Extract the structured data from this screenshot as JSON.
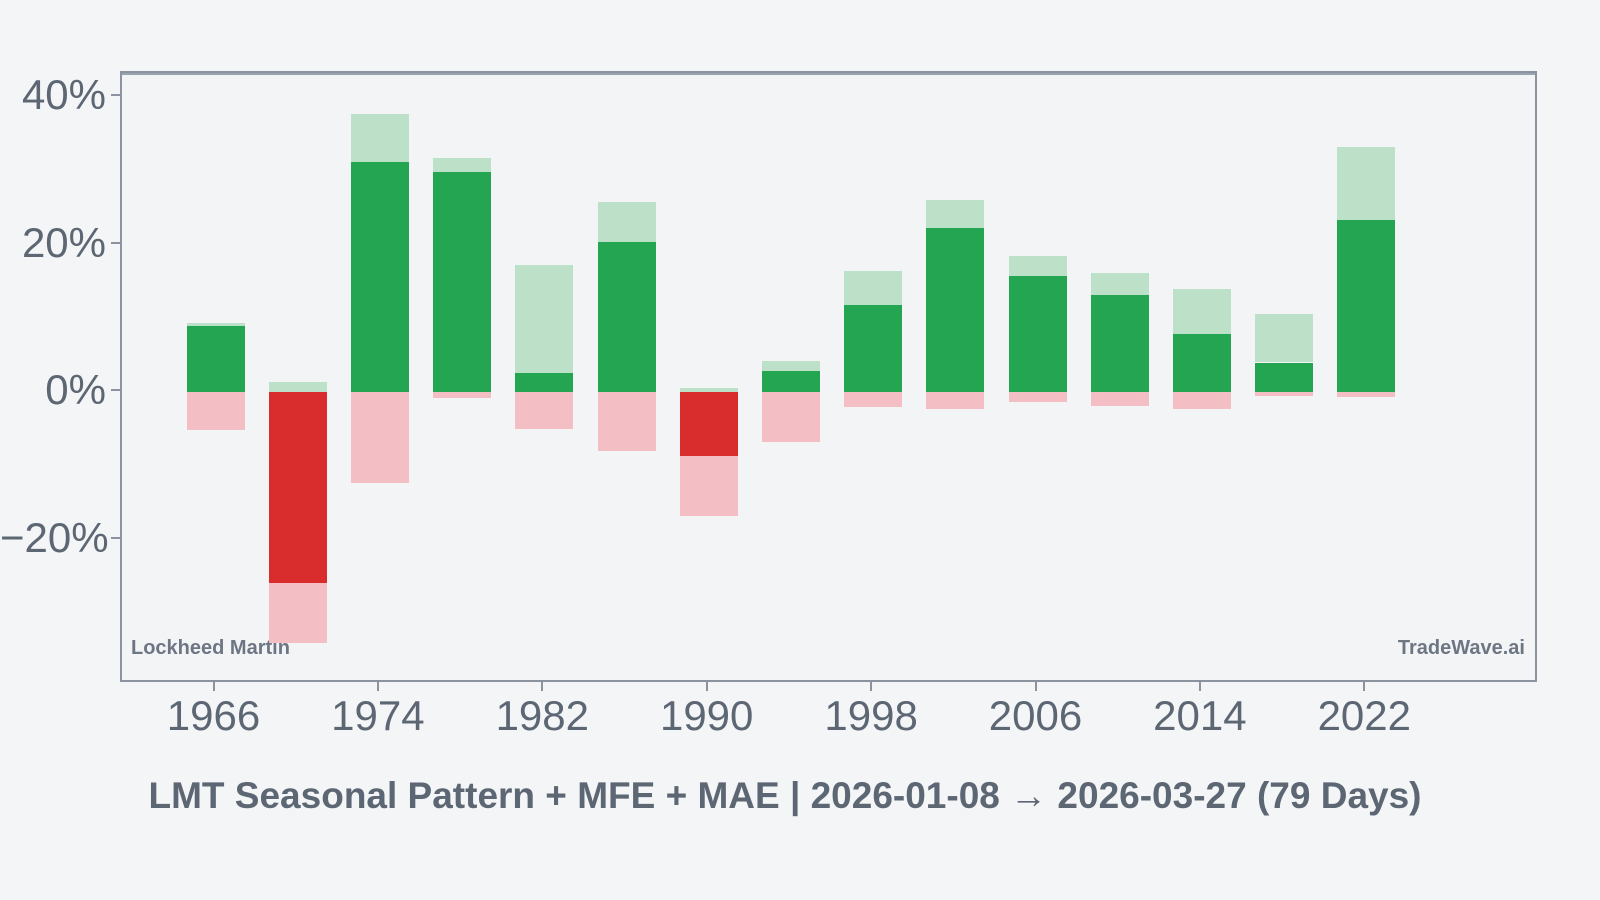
{
  "chart_data": {
    "type": "bar",
    "title": "LMT Seasonal Pattern + MFE + MAE | 2026-01-08 → 2026-03-27 (79 Days)",
    "categories": [
      1966,
      1970,
      1974,
      1978,
      1982,
      1986,
      1990,
      1994,
      1998,
      2002,
      2006,
      2010,
      2014,
      2018,
      2022
    ],
    "series": [
      {
        "name": "pattern_return_pct",
        "values": [
          9.0,
          -25.9,
          31.2,
          29.8,
          2.6,
          20.3,
          -8.7,
          2.9,
          11.8,
          22.2,
          15.7,
          13.2,
          7.8,
          4.0,
          23.3
        ]
      },
      {
        "name": "mfe_pct",
        "values": [
          9.3,
          1.3,
          37.7,
          31.7,
          17.2,
          25.8,
          0.5,
          4.2,
          16.4,
          26.1,
          18.4,
          16.2,
          14.0,
          10.6,
          33.2
        ]
      },
      {
        "name": "mae_pct",
        "values": [
          -5.1,
          -34.0,
          -12.3,
          -0.8,
          -5.0,
          -8.0,
          -16.8,
          -6.8,
          -2.0,
          -2.3,
          -1.4,
          -1.9,
          -2.3,
          -0.5,
          -0.7
        ]
      }
    ],
    "x_tick_labels": [
      "1966",
      "1974",
      "1982",
      "1990",
      "1998",
      "2006",
      "2014",
      "2022"
    ],
    "y_ticks": [
      {
        "value": 40,
        "label": "40%"
      },
      {
        "value": 20,
        "label": "20%"
      },
      {
        "value": 0,
        "label": "0%"
      },
      {
        "value": -20,
        "label": "−20%"
      }
    ],
    "ylim": [
      -39.6,
      43.3
    ],
    "xlabel": "",
    "ylabel": "",
    "grid": false,
    "legend_position": "none"
  },
  "watermarks": {
    "left": "Lockheed Martin",
    "right": "TradeWave.ai"
  },
  "colors": {
    "positive": "#23a552",
    "mfe": "#bce0c8",
    "negative": "#d92c2c",
    "mae": "#f3bfc5",
    "background": "#f3f5f7",
    "axis": "#8b93a0",
    "zero_line": "#9aa2ae",
    "tick_text": "#5d6673",
    "watermark_text": "#6e7684"
  }
}
